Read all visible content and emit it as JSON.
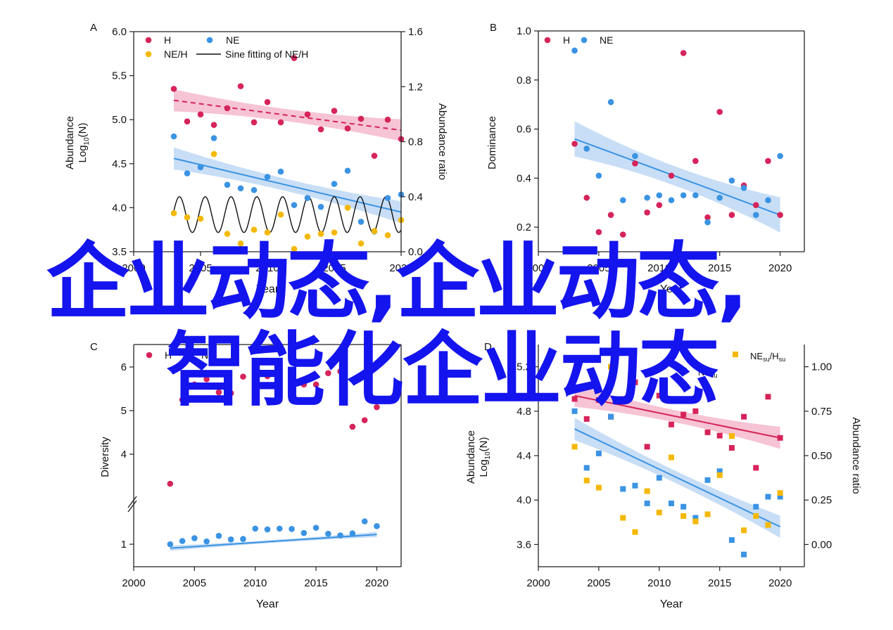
{
  "overlay": {
    "line1": "企业动态,企业动态,",
    "line2": "智能化企业动态"
  },
  "colors": {
    "H": "#d6245a",
    "NE": "#3a93e3",
    "NEH": "#f5b800",
    "fit": "#111111",
    "band_H": "#f3b0c6",
    "band_NE": "#b5d3f3"
  },
  "chart_data": [
    {
      "panel": "A",
      "type": "scatter",
      "xlabel": "Year",
      "ylabel_left": [
        "Abundance",
        "Log",
        "10",
        "(N)"
      ],
      "ylabel_right": "Abundance ratio",
      "xlim": [
        2000,
        2020
      ],
      "ylim": [
        3.5,
        6.0
      ],
      "y2lim": [
        0.0,
        1.6
      ],
      "xticks": [
        2000,
        2005,
        2010,
        2015,
        2020
      ],
      "yticks": [
        "3.5",
        "4.0",
        "4.5",
        "5.0",
        "5.5",
        "6.0"
      ],
      "y2ticks": [
        "0.0",
        "0.4",
        "0.8",
        "1.2",
        "1.6"
      ],
      "legend": [
        "H",
        "NE",
        "NE/H",
        "Sine fitting of NE/H"
      ],
      "series": [
        {
          "name": "H",
          "axis": "left",
          "x": [
            2003,
            2004,
            2005,
            2006,
            2007,
            2008,
            2009,
            2010,
            2011,
            2012,
            2013,
            2014,
            2015,
            2016,
            2017,
            2018,
            2019,
            2020
          ],
          "y": [
            5.35,
            4.98,
            5.06,
            4.94,
            5.13,
            5.38,
            4.97,
            5.2,
            4.97,
            5.7,
            5.06,
            4.89,
            5.1,
            4.9,
            5.01,
            4.59,
            5.0,
            4.78
          ],
          "fit": [
            5.22,
            4.88
          ]
        },
        {
          "name": "NE",
          "axis": "left",
          "x": [
            2003,
            2004,
            2005,
            2006,
            2007,
            2008,
            2009,
            2010,
            2011,
            2012,
            2013,
            2014,
            2015,
            2016,
            2017,
            2018,
            2019,
            2020
          ],
          "y": [
            4.81,
            4.39,
            4.46,
            4.79,
            4.26,
            4.22,
            4.2,
            4.35,
            4.41,
            4.03,
            4.11,
            4.01,
            4.27,
            4.42,
            3.84,
            3.73,
            4.11,
            4.15
          ],
          "fit": [
            4.56,
            3.95
          ]
        },
        {
          "name": "NE/H",
          "axis": "right",
          "x": [
            2003,
            2004,
            2005,
            2006,
            2007,
            2008,
            2009,
            2010,
            2011,
            2012,
            2013,
            2014,
            2015,
            2016,
            2017,
            2018,
            2019,
            2020
          ],
          "y": [
            0.28,
            0.25,
            0.24,
            0.71,
            0.13,
            0.06,
            0.16,
            0.14,
            0.27,
            0.02,
            0.11,
            0.13,
            0.14,
            0.32,
            0.06,
            0.15,
            0.12,
            0.23
          ]
        }
      ]
    },
    {
      "panel": "B",
      "type": "scatter",
      "xlabel": "Year",
      "ylabel_left": [
        "Dominance"
      ],
      "xlim": [
        2000,
        2022
      ],
      "ylim": [
        0.1,
        1.0
      ],
      "xticks": [
        2000,
        2005,
        2010,
        2015,
        2020
      ],
      "yticks": [
        "0.2",
        "0.4",
        "0.6",
        "0.8",
        "1.0"
      ],
      "legend": [
        "H",
        "NE"
      ],
      "series": [
        {
          "name": "H",
          "x": [
            2003,
            2004,
            2005,
            2006,
            2007,
            2008,
            2009,
            2010,
            2011,
            2012,
            2013,
            2014,
            2015,
            2016,
            2017,
            2018,
            2019,
            2020
          ],
          "y": [
            0.54,
            0.32,
            0.18,
            0.25,
            0.17,
            0.46,
            0.26,
            0.29,
            0.41,
            0.91,
            0.47,
            0.24,
            0.67,
            0.25,
            0.37,
            0.29,
            0.47,
            0.25
          ]
        },
        {
          "name": "NE",
          "x": [
            2003,
            2004,
            2005,
            2006,
            2007,
            2008,
            2009,
            2010,
            2011,
            2012,
            2013,
            2014,
            2015,
            2016,
            2017,
            2018,
            2019,
            2020
          ],
          "y": [
            0.92,
            0.52,
            0.41,
            0.71,
            0.31,
            0.49,
            0.32,
            0.33,
            0.31,
            0.33,
            0.33,
            0.22,
            0.32,
            0.39,
            0.36,
            0.25,
            0.31,
            0.49
          ],
          "fit": [
            0.56,
            0.25
          ]
        }
      ]
    },
    {
      "panel": "C",
      "type": "scatter",
      "xlabel": "Year",
      "ylabel_left": [
        "Diversity"
      ],
      "xlim": [
        2000,
        2022
      ],
      "ylim": [
        0.6,
        6.6
      ],
      "xticks": [
        2000,
        2005,
        2010,
        2015,
        2020
      ],
      "yticks": [
        "1",
        "4",
        "5",
        "6"
      ],
      "axis_break": true,
      "legend": [
        "H",
        "NE"
      ],
      "series": [
        {
          "name": "H",
          "x": [
            2003,
            2004,
            2005,
            2006,
            2007,
            2008,
            2009,
            2010,
            2011,
            2012,
            2013,
            2014,
            2015,
            2016,
            2017,
            2018,
            2019,
            2020
          ],
          "y": [
            3.3,
            5.25,
            5.6,
            5.72,
            5.42,
            5.4,
            5.78,
            5.9,
            5.79,
            5.24,
            5.7,
            5.6,
            5.6,
            5.86,
            5.9,
            4.63,
            4.78,
            5.08
          ]
        },
        {
          "name": "NE",
          "x": [
            2003,
            2004,
            2005,
            2006,
            2007,
            2008,
            2009,
            2010,
            2011,
            2012,
            2013,
            2014,
            2015,
            2016,
            2017,
            2018,
            2019,
            2020
          ],
          "y": [
            1.0,
            1.08,
            1.15,
            1.07,
            1.21,
            1.12,
            1.13,
            1.39,
            1.37,
            1.39,
            1.38,
            1.28,
            1.41,
            1.26,
            1.22,
            1.27,
            1.57,
            1.45
          ],
          "fit": [
            1.1,
            1.47
          ]
        }
      ]
    },
    {
      "panel": "D",
      "type": "scatter",
      "xlabel": "Year",
      "ylabel_left": [
        "Abundance",
        "Log",
        "10",
        "(N)"
      ],
      "ylabel_right": "Abundance ratio",
      "xlim": [
        2000,
        2022
      ],
      "ylim": [
        3.4,
        5.4
      ],
      "y2lim": [
        -0.125,
        1.125
      ],
      "xticks": [
        2000,
        2005,
        2010,
        2015,
        2020
      ],
      "yticks": [
        "3.6",
        "4.0",
        "4.4",
        "4.8",
        "5.2"
      ],
      "y2ticks": [
        "0.00",
        "0.25",
        "0.50",
        "0.75",
        "1.00"
      ],
      "legend": [
        "NEsu/Hsu",
        "NEsu"
      ],
      "series": [
        {
          "name": "Hsu",
          "x": [
            2003,
            2004,
            2005,
            2006,
            2007,
            2008,
            2009,
            2010,
            2011,
            2012,
            2013,
            2014,
            2015,
            2016,
            2017,
            2018,
            2019,
            2020
          ],
          "y": [
            4.91,
            4.73,
            4.9,
            4.75,
            4.91,
            5.06,
            4.48,
            4.94,
            4.68,
            4.77,
            4.8,
            4.61,
            4.58,
            4.47,
            4.75,
            4.29,
            4.93,
            4.56
          ],
          "fit": [
            4.94,
            4.56
          ]
        },
        {
          "name": "NEsu",
          "x": [
            2003,
            2004,
            2005,
            2006,
            2007,
            2008,
            2009,
            2010,
            2011,
            2012,
            2013,
            2014,
            2015,
            2016,
            2017,
            2018,
            2019,
            2020
          ],
          "y": [
            4.8,
            4.29,
            4.42,
            4.75,
            4.1,
            4.13,
            3.97,
            4.2,
            3.97,
            3.94,
            3.84,
            4.18,
            4.26,
            3.64,
            3.51,
            3.94,
            4.03,
            4.03
          ],
          "fit": [
            4.64,
            3.76
          ]
        },
        {
          "name": "NEsu/Hsu",
          "axis": "right",
          "x": [
            2003,
            2004,
            2005,
            2006,
            2007,
            2008,
            2009,
            2010,
            2011,
            2012,
            2013,
            2014,
            2015,
            2016,
            2017,
            2018,
            2019,
            2020
          ],
          "y": [
            0.55,
            0.36,
            0.32,
            1.0,
            0.15,
            0.07,
            0.3,
            0.18,
            0.49,
            0.16,
            0.13,
            0.17,
            0.39,
            0.61,
            0.08,
            0.16,
            0.11,
            0.29
          ]
        }
      ]
    }
  ]
}
